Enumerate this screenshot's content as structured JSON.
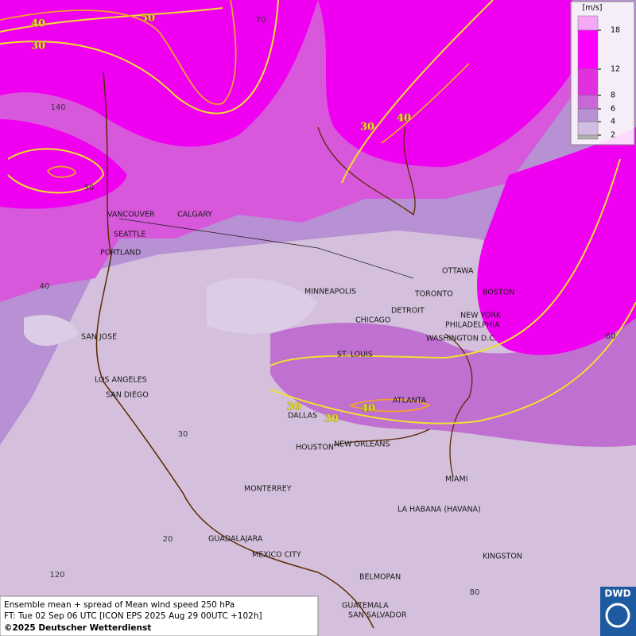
{
  "legend": {
    "unit": "[m/s]",
    "levels": [
      {
        "value": 18,
        "color": "#ff00ff"
      },
      {
        "value": 12,
        "color": "#e030e0"
      },
      {
        "value": 8,
        "color": "#c868d8"
      },
      {
        "value": 6,
        "color": "#b890d4"
      },
      {
        "value": 4,
        "color": "#d2bde2"
      },
      {
        "value": 2,
        "color": "#b0b0b0"
      }
    ],
    "top_color": "#f5a8f5"
  },
  "cities": [
    "VANCOUVER",
    "CALGARY",
    "SEATTLE",
    "PORTLAND",
    "MINNEAPOLIS",
    "OTTAWA",
    "TORONTO",
    "BOSTON",
    "DETROIT",
    "NEW YORK",
    "PHILADELPHIA",
    "CHICAGO",
    "WASHINGTON D.C.",
    "SAN JOSE",
    "ST. LOUIS",
    "LOS ANGELES",
    "SAN DIEGO",
    "ATLANTA",
    "DALLAS",
    "HOUSTON",
    "NEW ORLEANS",
    "MIAMI",
    "MONTERREY",
    "LA HABANA (HAVANA)",
    "GUADALAJARA",
    "MEXICO CITY",
    "KINGSTON",
    "BELMOPAN",
    "GUATEMALA",
    "SAN SALVADOR"
  ],
  "contour_labels": [
    40,
    50,
    30,
    30,
    40,
    30,
    40,
    30
  ],
  "graticule_labels": [
    70,
    140,
    50,
    40,
    60,
    30,
    20,
    120,
    80
  ],
  "caption": {
    "line1": "Ensemble mean + spread of Mean wind speed 250 hPa",
    "line2": "FT: Tue 02 Sep 06 UTC [ICON EPS 2025 Aug 29 00UTC +102h]",
    "copyright": "©2025 Deutscher Wetterdienst"
  },
  "logo": "DWD"
}
